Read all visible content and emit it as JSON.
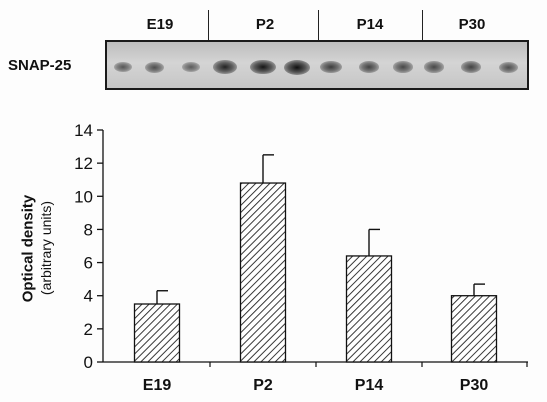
{
  "blot": {
    "label": "SNAP-25",
    "groups": [
      "E19",
      "P2",
      "P14",
      "P30"
    ],
    "band_intensity": [
      [
        0.45,
        0.5,
        0.4
      ],
      [
        0.85,
        0.95,
        1.0
      ],
      [
        0.65,
        0.6,
        0.55
      ],
      [
        0.55,
        0.6,
        0.5
      ]
    ]
  },
  "chart_data": {
    "type": "bar",
    "categories": [
      "E19",
      "P2",
      "P14",
      "P30"
    ],
    "values": [
      3.5,
      10.8,
      6.4,
      4.0
    ],
    "error_plus": [
      0.8,
      1.7,
      1.6,
      0.7
    ],
    "ylabel": "Optical density",
    "ylabel_sub": "(arbitrary units)",
    "xlabel": "",
    "ylim": [
      0,
      14
    ],
    "yticks": [
      0,
      2,
      4,
      6,
      8,
      10,
      12,
      14
    ],
    "bar_fill": "hatched",
    "colors": {
      "bar": "#ffffff",
      "hatch": "#222222",
      "axis": "#111111"
    }
  }
}
